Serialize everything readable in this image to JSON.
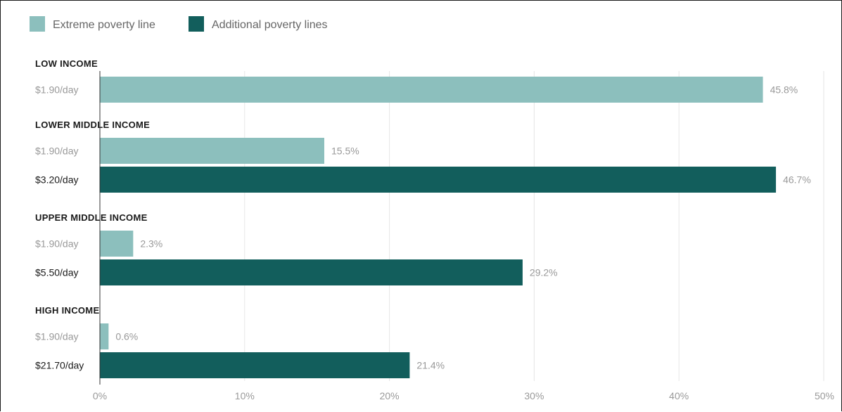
{
  "chart_data": {
    "type": "bar",
    "orientation": "horizontal",
    "legend": {
      "placement": "top-left",
      "items": [
        {
          "label": "Extreme poverty line",
          "color": "#8cbfbd"
        },
        {
          "label": "Additional poverty lines",
          "color": "#125e5c"
        }
      ]
    },
    "series_colors": {
      "extreme": "#8cbfbd",
      "additional": "#125e5c"
    },
    "groups": [
      {
        "title": "LOW INCOME",
        "bars": [
          {
            "label": "$1.90/day",
            "series": "extreme",
            "value": 45.8,
            "value_label": "45.8%"
          }
        ]
      },
      {
        "title": "LOWER MIDDLE INCOME",
        "bars": [
          {
            "label": "$1.90/day",
            "series": "extreme",
            "value": 15.5,
            "value_label": "15.5%"
          },
          {
            "label": "$3.20/day",
            "series": "additional",
            "value": 46.7,
            "value_label": "46.7%"
          }
        ]
      },
      {
        "title": "UPPER MIDDLE INCOME",
        "bars": [
          {
            "label": "$1.90/day",
            "series": "extreme",
            "value": 2.3,
            "value_label": "2.3%"
          },
          {
            "label": "$5.50/day",
            "series": "additional",
            "value": 29.2,
            "value_label": "29.2%"
          }
        ]
      },
      {
        "title": "HIGH INCOME",
        "bars": [
          {
            "label": "$1.90/day",
            "series": "extreme",
            "value": 0.6,
            "value_label": "0.6%"
          },
          {
            "label": "$21.70/day",
            "series": "additional",
            "value": 21.4,
            "value_label": "21.4%"
          }
        ]
      }
    ],
    "xlim": [
      0,
      50
    ],
    "x_ticks": [
      {
        "value": 0,
        "label": "0%"
      },
      {
        "value": 10,
        "label": "10%"
      },
      {
        "value": 20,
        "label": "20%"
      },
      {
        "value": 30,
        "label": "30%"
      },
      {
        "value": 40,
        "label": "40%"
      },
      {
        "value": 50,
        "label": "50%"
      }
    ],
    "grid": true,
    "colors": {
      "grid": "#e6e6e6",
      "tick_text": "#999999",
      "value_text": "#999999",
      "extreme_label_text": "#999999",
      "additional_label_text": "#1a1a1a",
      "group_title_text": "#1a1a1a",
      "legend_text": "#666666"
    }
  }
}
